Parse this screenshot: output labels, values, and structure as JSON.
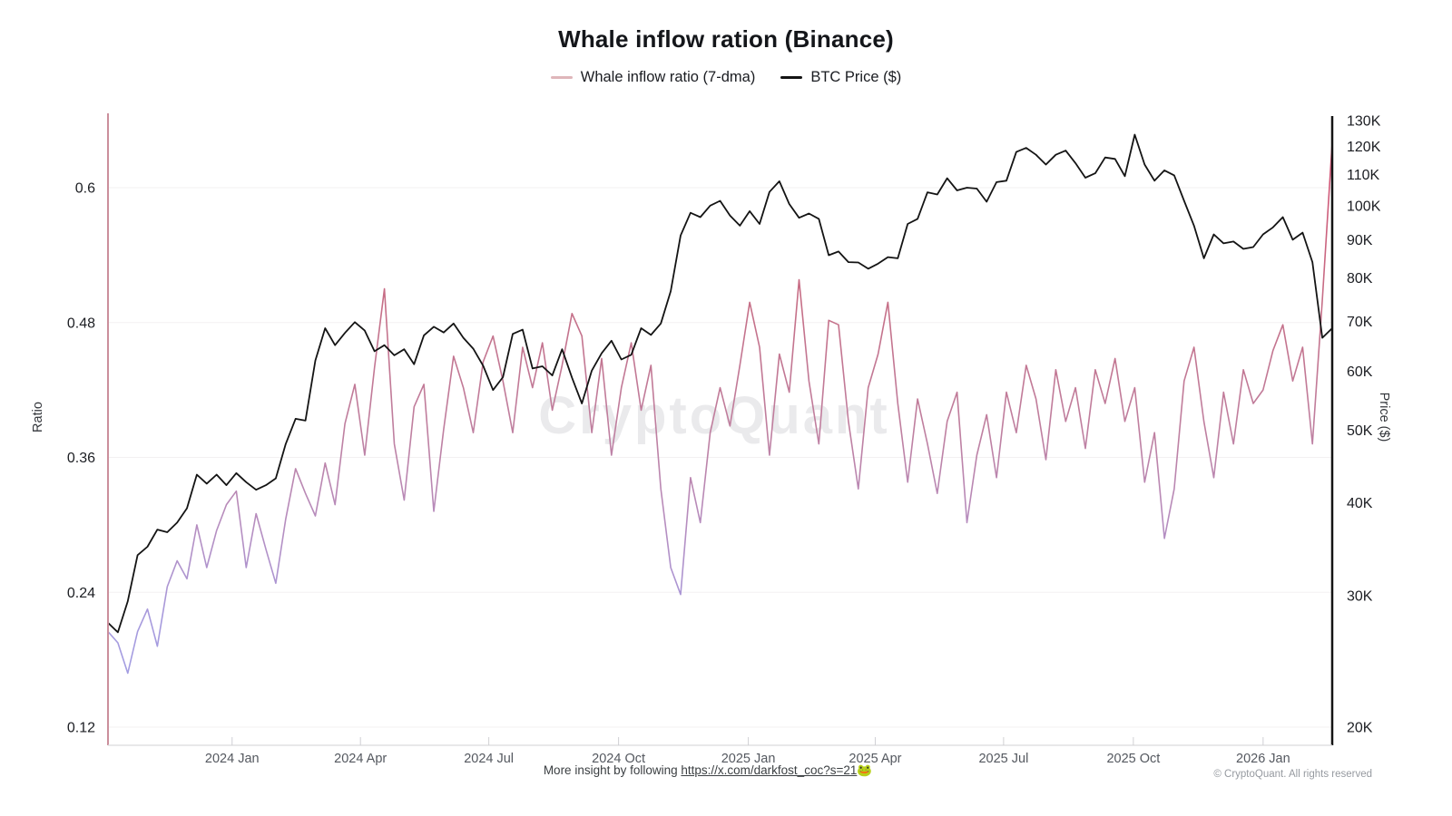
{
  "title": "Whale inflow ration (Binance)",
  "legend": [
    {
      "label": "Whale inflow ratio (7-dma)",
      "swatch_color": "#dfb6ba"
    },
    {
      "label": "BTC Price ($)",
      "swatch_color": "#141414"
    }
  ],
  "watermark": "CryptoQuant",
  "footer": {
    "prefix": "More insight by following ",
    "link": "https://x.com/darkfost_coc?s=21",
    "emoji": "🐸",
    "copyright": "© CryptoQuant. All rights reserved"
  },
  "chart_data": {
    "type": "line",
    "title": "Whale inflow ration (Binance)",
    "x_start_date": "2023-10-07",
    "x_step_days": 7,
    "x_tick_labels": [
      "2024 Jan",
      "2024 Apr",
      "2024 Jul",
      "2024 Oct",
      "2025 Jan",
      "2025 Apr",
      "2025 Jul",
      "2025 Oct",
      "2026 Jan"
    ],
    "x_tick_day_offsets": [
      88,
      179,
      270,
      362,
      454,
      544,
      635,
      727,
      819
    ],
    "left_axis": {
      "label": "Ratio",
      "scale": "linear",
      "ticks": [
        0.12,
        0.24,
        0.36,
        0.48,
        0.6
      ],
      "axis_color": "#cb8f9c",
      "grid": "faint"
    },
    "right_axis": {
      "label": "Price ($)",
      "scale": "log",
      "tick_values_k": [
        20,
        30,
        40,
        50,
        60,
        70,
        80,
        90,
        100,
        110,
        120,
        130
      ],
      "tick_labels": [
        "20K",
        "30K",
        "40K",
        "50K",
        "60K",
        "70K",
        "80K",
        "90K",
        "100K",
        "110K",
        "120K",
        "130K"
      ],
      "axis_color": "#141414"
    },
    "legend_position": "top-center",
    "series": [
      {
        "name": "Whale inflow ratio (7-dma)",
        "axis": "left",
        "style": "vertical-gradient",
        "gradient_stops": [
          [
            0,
            "#d6335f"
          ],
          [
            0.1,
            "#d05676"
          ],
          [
            0.3,
            "#c66f87"
          ],
          [
            0.5,
            "#bf7f9f"
          ],
          [
            0.65,
            "#b68dbf"
          ],
          [
            0.8,
            "#a79add"
          ],
          [
            1,
            "#9ea1e8"
          ]
        ],
        "values": [
          0.205,
          0.195,
          0.168,
          0.205,
          0.225,
          0.192,
          0.245,
          0.268,
          0.252,
          0.3,
          0.262,
          0.295,
          0.318,
          0.33,
          0.262,
          0.31,
          0.278,
          0.248,
          0.305,
          0.35,
          0.328,
          0.308,
          0.355,
          0.318,
          0.39,
          0.425,
          0.362,
          0.44,
          0.51,
          0.372,
          0.322,
          0.405,
          0.425,
          0.312,
          0.385,
          0.45,
          0.422,
          0.382,
          0.445,
          0.468,
          0.428,
          0.382,
          0.458,
          0.422,
          0.462,
          0.402,
          0.442,
          0.488,
          0.468,
          0.382,
          0.448,
          0.362,
          0.422,
          0.462,
          0.402,
          0.442,
          0.332,
          0.262,
          0.238,
          0.342,
          0.302,
          0.382,
          0.422,
          0.388,
          0.442,
          0.498,
          0.458,
          0.362,
          0.452,
          0.418,
          0.518,
          0.428,
          0.372,
          0.482,
          0.478,
          0.392,
          0.332,
          0.422,
          0.452,
          0.498,
          0.408,
          0.338,
          0.412,
          0.372,
          0.328,
          0.392,
          0.418,
          0.302,
          0.362,
          0.398,
          0.342,
          0.418,
          0.382,
          0.442,
          0.412,
          0.358,
          0.438,
          0.392,
          0.422,
          0.368,
          0.438,
          0.408,
          0.448,
          0.392,
          0.422,
          0.338,
          0.382,
          0.288,
          0.332,
          0.428,
          0.458,
          0.392,
          0.342,
          0.418,
          0.372,
          0.438,
          0.408,
          0.42,
          0.455,
          0.478,
          0.428,
          0.458,
          0.372,
          0.5,
          0.64
        ]
      },
      {
        "name": "BTC Price ($)",
        "axis": "right",
        "color": "#141414",
        "values_usd_k": [
          27.6,
          26.8,
          29.5,
          34.0,
          34.9,
          36.8,
          36.5,
          37.6,
          39.3,
          43.6,
          42.4,
          43.6,
          42.2,
          43.8,
          42.6,
          41.6,
          42.2,
          43.1,
          47.9,
          51.8,
          51.5,
          62.0,
          68.5,
          65.0,
          67.5,
          69.8,
          68.0,
          63.8,
          65.0,
          63.0,
          64.2,
          61.3,
          67.0,
          68.8,
          67.6,
          69.5,
          66.5,
          64.3,
          61.0,
          56.6,
          58.9,
          67.3,
          68.2,
          60.5,
          60.9,
          59.2,
          64.2,
          58.8,
          54.3,
          60.1,
          63.4,
          65.9,
          62.2,
          63.1,
          68.5,
          67.1,
          69.5,
          76.8,
          91.2,
          97.8,
          96.5,
          100.0,
          101.5,
          97.0,
          94.0,
          98.3,
          94.5,
          104.3,
          107.8,
          100.5,
          96.3,
          97.6,
          96.0,
          85.8,
          86.8,
          84.0,
          83.9,
          82.3,
          83.6,
          85.3,
          85.0,
          94.5,
          96.0,
          104.2,
          103.5,
          108.8,
          104.8,
          105.7,
          105.4,
          101.2,
          107.5,
          108.0,
          118.0,
          119.5,
          117.0,
          113.5,
          117.0,
          118.5,
          114.0,
          109.0,
          110.5,
          116.0,
          115.5,
          109.5,
          124.5,
          113.5,
          108.0,
          111.5,
          109.8,
          101.5,
          94.0,
          85.0,
          91.5,
          89.0,
          89.5,
          87.5,
          88.0,
          91.5,
          93.5,
          96.5,
          90.0,
          92.0,
          84.0,
          66.5,
          68.5
        ]
      }
    ]
  }
}
